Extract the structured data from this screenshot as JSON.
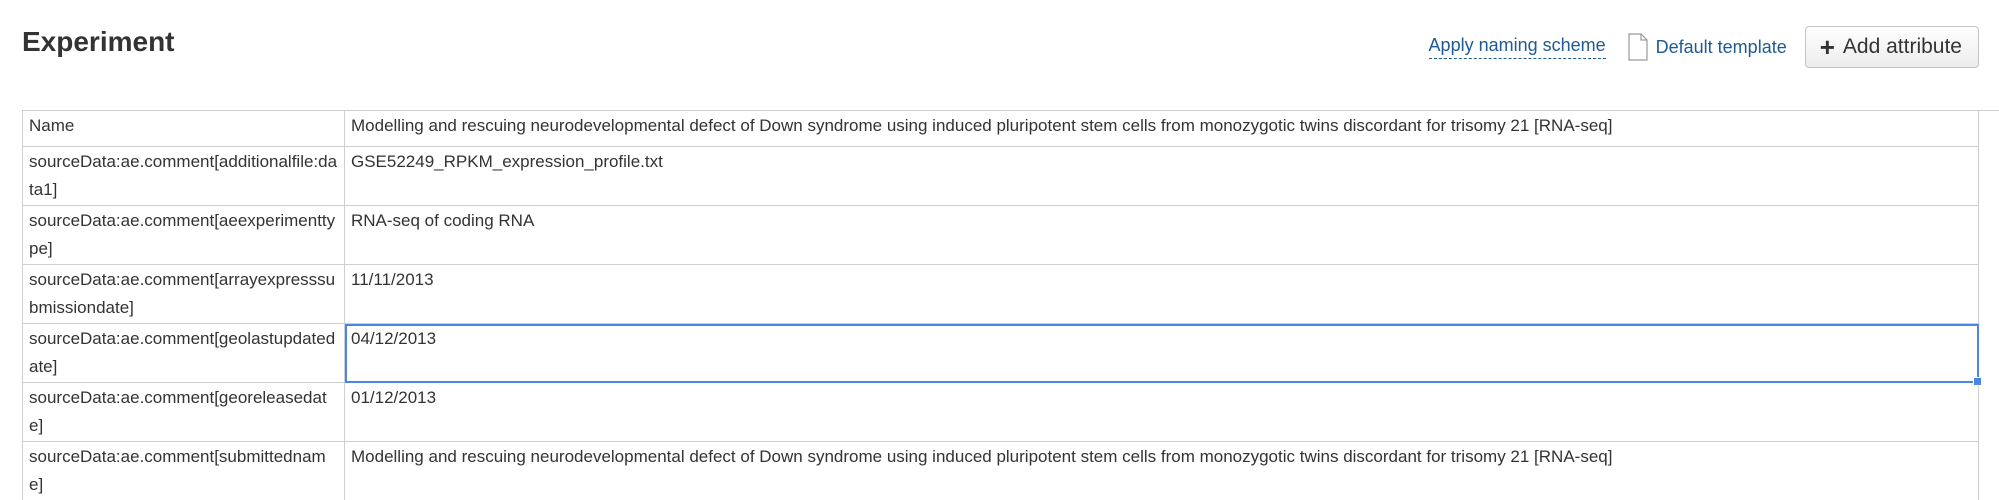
{
  "header": {
    "title": "Experiment",
    "apply_naming_label": "Apply naming scheme",
    "template_label": "Default template",
    "template_icon": "document-icon",
    "add_attribute_label": "Add attribute",
    "add_attribute_icon": "plus-icon"
  },
  "grid": {
    "selected_row": 4,
    "rows": [
      {
        "key": "Name",
        "value": "Modelling and rescuing neurodevelopmental defect of Down syndrome using induced pluripotent stem cells from monozygotic twins discordant for trisomy 21 [RNA-seq]"
      },
      {
        "key": "sourceData:ae.comment[additionalfile:data1]",
        "value": "GSE52249_RPKM_expression_profile.txt"
      },
      {
        "key": "sourceData:ae.comment[aeexperimenttype]",
        "value": "RNA-seq of coding RNA"
      },
      {
        "key": "sourceData:ae.comment[arrayexpresssubmissiondate]",
        "value": "11/11/2013"
      },
      {
        "key": "sourceData:ae.comment[geolastupdatedate]",
        "value": "04/12/2013"
      },
      {
        "key": "sourceData:ae.comment[georeleasedate]",
        "value": "01/12/2013"
      },
      {
        "key": "sourceData:ae.comment[submittedname]",
        "value": "Modelling and rescuing neurodevelopmental defect of Down syndrome using induced pluripotent stem cells from monozygotic twins discordant for trisomy 21 [RNA-seq]"
      }
    ]
  }
}
